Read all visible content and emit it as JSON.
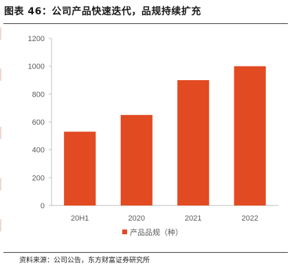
{
  "header": {
    "title": "图表 46：公司产品快速迭代，品规持续扩充"
  },
  "footer": {
    "source": "资料来源：公司公告，东方财富证券研究所"
  },
  "colors": {
    "bar": "#e24a22",
    "axis": "#bfbfbf",
    "text": "#595959"
  },
  "chart_data": {
    "type": "bar",
    "categories": [
      "20H1",
      "2020",
      "2021",
      "2022"
    ],
    "series": [
      {
        "name": "产品品规（种）",
        "values": [
          530,
          650,
          900,
          1000
        ]
      }
    ],
    "ylim": [
      0,
      1200
    ],
    "yticks": [
      0,
      200,
      400,
      600,
      800,
      1000,
      1200
    ],
    "grid": false,
    "legend": "bottom"
  }
}
